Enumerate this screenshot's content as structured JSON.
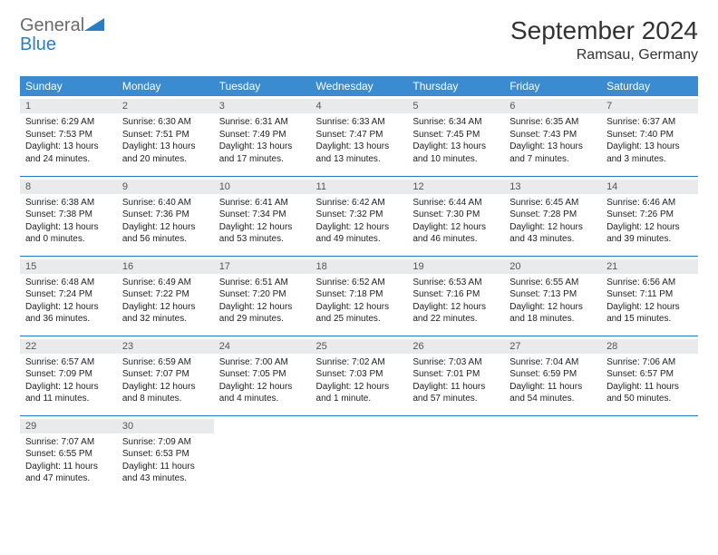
{
  "brand": {
    "general": "General",
    "blue": "Blue",
    "icon_color": "#2a7dc4"
  },
  "title": "September 2024",
  "location": "Ramsau, Germany",
  "header_bg": "#3b8bd0",
  "header_text_color": "#ffffff",
  "daynum_bg": "#e9eaeb",
  "border_color": "#2a7dc4",
  "weekdays": [
    "Sunday",
    "Monday",
    "Tuesday",
    "Wednesday",
    "Thursday",
    "Friday",
    "Saturday"
  ],
  "weeks": [
    [
      {
        "n": "1",
        "sr": "6:29 AM",
        "ss": "7:53 PM",
        "dl": "13 hours and 24 minutes."
      },
      {
        "n": "2",
        "sr": "6:30 AM",
        "ss": "7:51 PM",
        "dl": "13 hours and 20 minutes."
      },
      {
        "n": "3",
        "sr": "6:31 AM",
        "ss": "7:49 PM",
        "dl": "13 hours and 17 minutes."
      },
      {
        "n": "4",
        "sr": "6:33 AM",
        "ss": "7:47 PM",
        "dl": "13 hours and 13 minutes."
      },
      {
        "n": "5",
        "sr": "6:34 AM",
        "ss": "7:45 PM",
        "dl": "13 hours and 10 minutes."
      },
      {
        "n": "6",
        "sr": "6:35 AM",
        "ss": "7:43 PM",
        "dl": "13 hours and 7 minutes."
      },
      {
        "n": "7",
        "sr": "6:37 AM",
        "ss": "7:40 PM",
        "dl": "13 hours and 3 minutes."
      }
    ],
    [
      {
        "n": "8",
        "sr": "6:38 AM",
        "ss": "7:38 PM",
        "dl": "13 hours and 0 minutes."
      },
      {
        "n": "9",
        "sr": "6:40 AM",
        "ss": "7:36 PM",
        "dl": "12 hours and 56 minutes."
      },
      {
        "n": "10",
        "sr": "6:41 AM",
        "ss": "7:34 PM",
        "dl": "12 hours and 53 minutes."
      },
      {
        "n": "11",
        "sr": "6:42 AM",
        "ss": "7:32 PM",
        "dl": "12 hours and 49 minutes."
      },
      {
        "n": "12",
        "sr": "6:44 AM",
        "ss": "7:30 PM",
        "dl": "12 hours and 46 minutes."
      },
      {
        "n": "13",
        "sr": "6:45 AM",
        "ss": "7:28 PM",
        "dl": "12 hours and 43 minutes."
      },
      {
        "n": "14",
        "sr": "6:46 AM",
        "ss": "7:26 PM",
        "dl": "12 hours and 39 minutes."
      }
    ],
    [
      {
        "n": "15",
        "sr": "6:48 AM",
        "ss": "7:24 PM",
        "dl": "12 hours and 36 minutes."
      },
      {
        "n": "16",
        "sr": "6:49 AM",
        "ss": "7:22 PM",
        "dl": "12 hours and 32 minutes."
      },
      {
        "n": "17",
        "sr": "6:51 AM",
        "ss": "7:20 PM",
        "dl": "12 hours and 29 minutes."
      },
      {
        "n": "18",
        "sr": "6:52 AM",
        "ss": "7:18 PM",
        "dl": "12 hours and 25 minutes."
      },
      {
        "n": "19",
        "sr": "6:53 AM",
        "ss": "7:16 PM",
        "dl": "12 hours and 22 minutes."
      },
      {
        "n": "20",
        "sr": "6:55 AM",
        "ss": "7:13 PM",
        "dl": "12 hours and 18 minutes."
      },
      {
        "n": "21",
        "sr": "6:56 AM",
        "ss": "7:11 PM",
        "dl": "12 hours and 15 minutes."
      }
    ],
    [
      {
        "n": "22",
        "sr": "6:57 AM",
        "ss": "7:09 PM",
        "dl": "12 hours and 11 minutes."
      },
      {
        "n": "23",
        "sr": "6:59 AM",
        "ss": "7:07 PM",
        "dl": "12 hours and 8 minutes."
      },
      {
        "n": "24",
        "sr": "7:00 AM",
        "ss": "7:05 PM",
        "dl": "12 hours and 4 minutes."
      },
      {
        "n": "25",
        "sr": "7:02 AM",
        "ss": "7:03 PM",
        "dl": "12 hours and 1 minute."
      },
      {
        "n": "26",
        "sr": "7:03 AM",
        "ss": "7:01 PM",
        "dl": "11 hours and 57 minutes."
      },
      {
        "n": "27",
        "sr": "7:04 AM",
        "ss": "6:59 PM",
        "dl": "11 hours and 54 minutes."
      },
      {
        "n": "28",
        "sr": "7:06 AM",
        "ss": "6:57 PM",
        "dl": "11 hours and 50 minutes."
      }
    ],
    [
      {
        "n": "29",
        "sr": "7:07 AM",
        "ss": "6:55 PM",
        "dl": "11 hours and 47 minutes."
      },
      {
        "n": "30",
        "sr": "7:09 AM",
        "ss": "6:53 PM",
        "dl": "11 hours and 43 minutes."
      },
      null,
      null,
      null,
      null,
      null
    ]
  ],
  "labels": {
    "sunrise": "Sunrise:",
    "sunset": "Sunset:",
    "daylight": "Daylight:"
  }
}
